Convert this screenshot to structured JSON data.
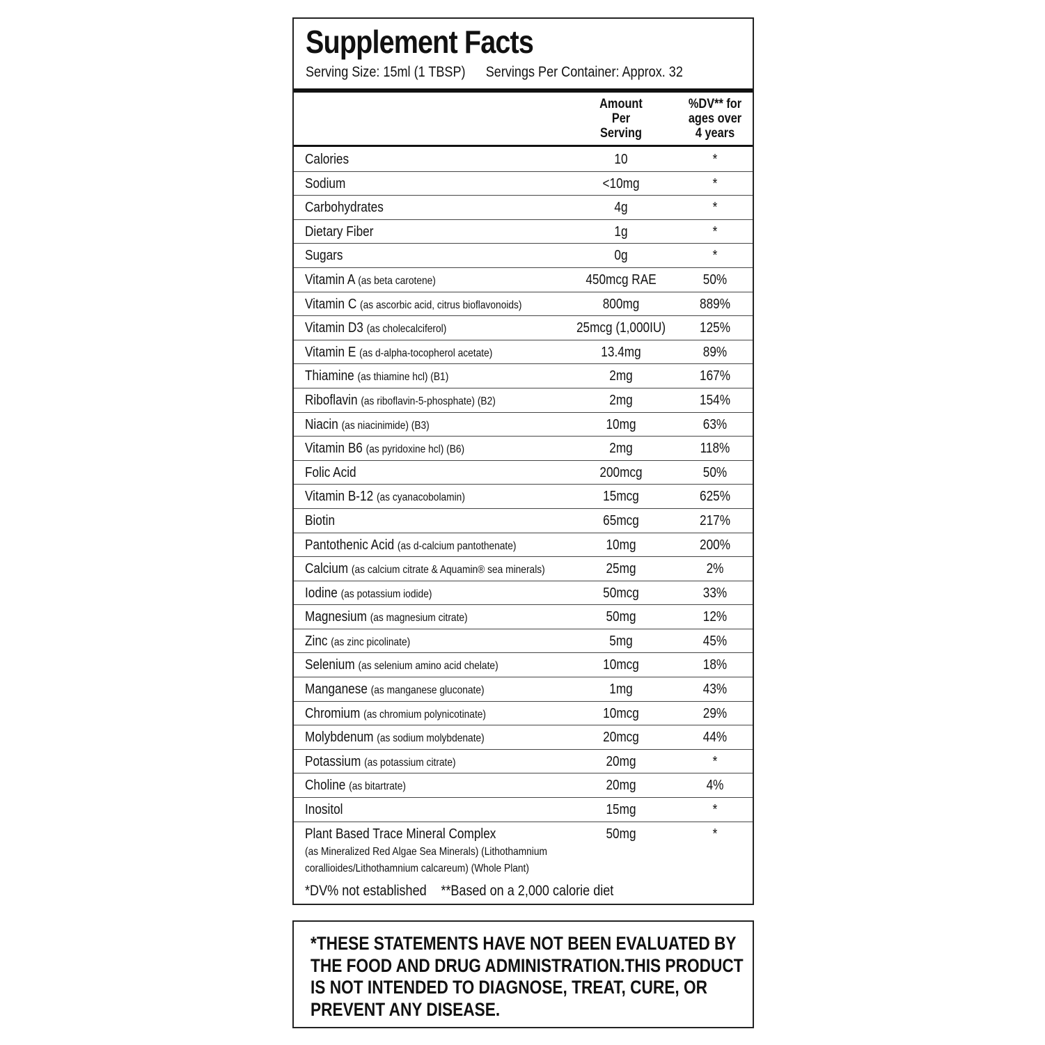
{
  "title": "Supplement Facts",
  "serving_size": "Serving Size: 15ml (1 TBSP)",
  "servings_per_container": "Servings Per Container: Approx. 32",
  "header": {
    "amount_lines": [
      "Amount",
      "Per",
      "Serving"
    ],
    "dv_lines": [
      "%DV** for",
      "ages over",
      "4 years"
    ]
  },
  "rows": [
    {
      "name": "Calories",
      "detail": "",
      "amount": "10",
      "dv": "*"
    },
    {
      "name": "Sodium",
      "detail": "",
      "amount": "<10mg",
      "dv": "*"
    },
    {
      "name": "Carbohydrates",
      "detail": "",
      "amount": "4g",
      "dv": "*"
    },
    {
      "name": "Dietary Fiber",
      "detail": "",
      "amount": "1g",
      "dv": "*"
    },
    {
      "name": "Sugars",
      "detail": "",
      "amount": "0g",
      "dv": "*"
    },
    {
      "name": "Vitamin A",
      "detail": "(as beta carotene)",
      "amount": "450mcg RAE",
      "dv": "50%"
    },
    {
      "name": "Vitamin C",
      "detail": "(as ascorbic acid, citrus bioflavonoids)",
      "amount": "800mg",
      "dv": "889%"
    },
    {
      "name": "Vitamin D3",
      "detail": "(as cholecalciferol)",
      "amount": "25mcg (1,000IU)",
      "dv": "125%"
    },
    {
      "name": "Vitamin E",
      "detail": "(as d-alpha-tocopherol acetate)",
      "amount": "13.4mg",
      "dv": "89%"
    },
    {
      "name": "Thiamine",
      "detail": "(as thiamine hcl) (B1)",
      "amount": "2mg",
      "dv": "167%"
    },
    {
      "name": "Riboflavin",
      "detail": "(as riboflavin-5-phosphate) (B2)",
      "amount": "2mg",
      "dv": "154%"
    },
    {
      "name": "Niacin",
      "detail": "(as niacinimide) (B3)",
      "amount": "10mg",
      "dv": "63%"
    },
    {
      "name": "Vitamin B6",
      "detail": "(as pyridoxine hcl) (B6)",
      "amount": "2mg",
      "dv": "118%"
    },
    {
      "name": "Folic Acid",
      "detail": "",
      "amount": "200mcg",
      "dv": "50%"
    },
    {
      "name": "Vitamin B-12",
      "detail": "(as cyanacobolamin)",
      "amount": "15mcg",
      "dv": "625%"
    },
    {
      "name": "Biotin",
      "detail": "",
      "amount": "65mcg",
      "dv": "217%"
    },
    {
      "name": "Pantothenic Acid",
      "detail": "(as d-calcium pantothenate)",
      "amount": "10mg",
      "dv": "200%"
    },
    {
      "name": "Calcium",
      "detail": "(as calcium citrate & Aquamin® sea minerals)",
      "amount": "25mg",
      "dv": "2%"
    },
    {
      "name": "Iodine",
      "detail": "(as potassium iodide)",
      "amount": "50mcg",
      "dv": "33%"
    },
    {
      "name": "Magnesium",
      "detail": "(as magnesium citrate)",
      "amount": "50mg",
      "dv": "12%"
    },
    {
      "name": "Zinc",
      "detail": "(as zinc picolinate)",
      "amount": "5mg",
      "dv": "45%"
    },
    {
      "name": "Selenium",
      "detail": "(as selenium amino acid chelate)",
      "amount": "10mcg",
      "dv": "18%"
    },
    {
      "name": "Manganese",
      "detail": "(as manganese gluconate)",
      "amount": "1mg",
      "dv": "43%"
    },
    {
      "name": "Chromium",
      "detail": "(as chromium polynicotinate)",
      "amount": "10mcg",
      "dv": "29%"
    },
    {
      "name": "Molybdenum",
      "detail": "(as sodium molybdenate)",
      "amount": "20mcg",
      "dv": "44%"
    },
    {
      "name": "Potassium",
      "detail": "(as potassium citrate)",
      "amount": "20mg",
      "dv": "*"
    },
    {
      "name": "Choline",
      "detail": "(as bitartrate)",
      "amount": "20mg",
      "dv": "4%"
    },
    {
      "name": "Inositol",
      "detail": "",
      "amount": "15mg",
      "dv": "*"
    }
  ],
  "last_row": {
    "name": "Plant Based Trace Mineral Complex",
    "detail_lines": [
      "(as Mineralized Red Algae Sea Minerals) (Lithothamnium",
      "corallioides/Lithothamnium calcareum) (Whole Plant)"
    ],
    "amount": "50mg",
    "dv": "*"
  },
  "footnotes": [
    "*DV% not established",
    "**Based on a 2,000 calorie diet"
  ],
  "disclaimer": "*THESE STATEMENTS HAVE NOT BEEN EVALUATED BY THE FOOD AND DRUG ADMINISTRATION.THIS PRODUCT IS NOT INTENDED TO DIAGNOSE, TREAT, CURE, OR PREVENT ANY DISEASE."
}
